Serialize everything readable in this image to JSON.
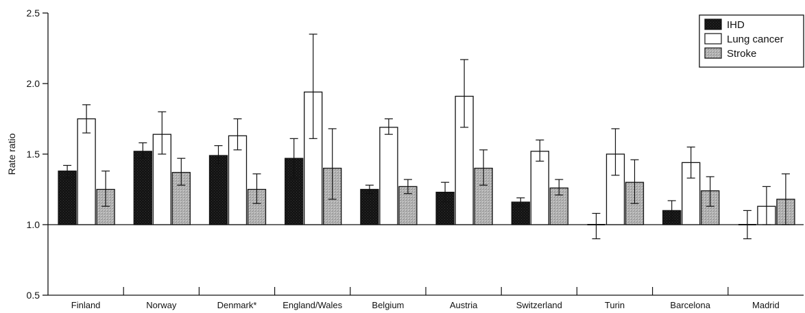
{
  "chart_data": {
    "type": "bar",
    "title": "",
    "xlabel": "",
    "ylabel": "Rate ratio",
    "ylim": [
      0.5,
      2.5
    ],
    "yticks": [
      "0.5",
      "1.0",
      "1.5",
      "2.0",
      "2.5"
    ],
    "baseline": 1.0,
    "grid": false,
    "legend_position": "top-right",
    "categories": [
      "Finland",
      "Norway",
      "Denmark*",
      "England/Wales",
      "Belgium",
      "Austria",
      "Switzerland",
      "Turin",
      "Barcelona",
      "Madrid"
    ],
    "series": [
      {
        "name": "IHD",
        "color": "#111111",
        "pattern": "solid-dark",
        "values": [
          1.38,
          1.52,
          1.49,
          1.47,
          1.25,
          1.23,
          1.16,
          1.0,
          1.1,
          1.0
        ],
        "ci_low": [
          1.33,
          1.47,
          1.43,
          1.33,
          1.22,
          1.16,
          1.13,
          0.9,
          1.03,
          0.9
        ],
        "ci_high": [
          1.42,
          1.58,
          1.56,
          1.61,
          1.28,
          1.3,
          1.19,
          1.08,
          1.17,
          1.1
        ]
      },
      {
        "name": "Lung cancer",
        "color": "#ffffff",
        "pattern": "open",
        "values": [
          1.75,
          1.64,
          1.63,
          1.94,
          1.69,
          1.91,
          1.52,
          1.5,
          1.44,
          1.13
        ],
        "ci_low": [
          1.65,
          1.5,
          1.53,
          1.61,
          1.64,
          1.69,
          1.45,
          1.35,
          1.33,
          1.0
        ],
        "ci_high": [
          1.85,
          1.8,
          1.75,
          2.35,
          1.75,
          2.17,
          1.6,
          1.68,
          1.55,
          1.27
        ]
      },
      {
        "name": "Stroke",
        "color": "#b8b8b8",
        "pattern": "speckled-gray",
        "values": [
          1.25,
          1.37,
          1.25,
          1.4,
          1.27,
          1.4,
          1.26,
          1.3,
          1.24,
          1.18
        ],
        "ci_low": [
          1.13,
          1.28,
          1.15,
          1.18,
          1.22,
          1.28,
          1.21,
          1.15,
          1.13,
          1.0
        ],
        "ci_high": [
          1.38,
          1.47,
          1.36,
          1.68,
          1.32,
          1.53,
          1.32,
          1.46,
          1.34,
          1.36
        ]
      }
    ]
  }
}
